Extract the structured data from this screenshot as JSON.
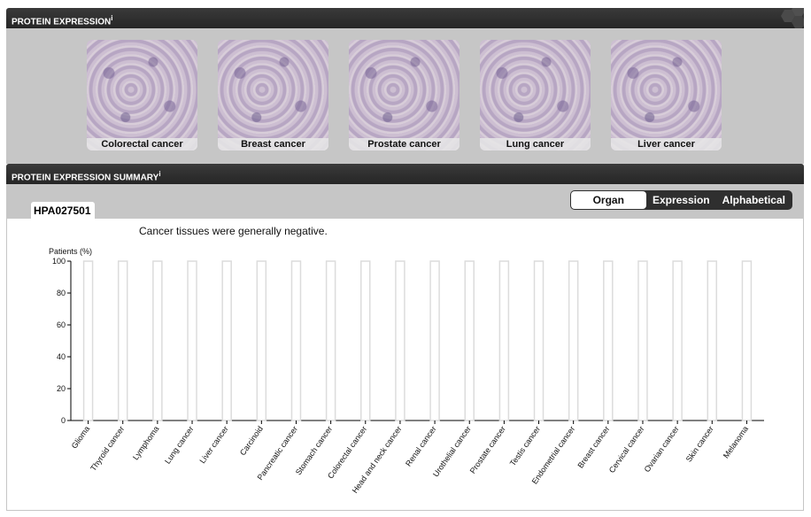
{
  "protein_expression": {
    "title": "PROTEIN EXPRESSION",
    "info_mark": "i",
    "thumbnails": [
      {
        "label": "Colorectal cancer"
      },
      {
        "label": "Breast cancer"
      },
      {
        "label": "Prostate cancer"
      },
      {
        "label": "Lung cancer"
      },
      {
        "label": "Liver cancer"
      }
    ]
  },
  "summary": {
    "title": "PROTEIN EXPRESSION SUMMARY",
    "info_mark": "i",
    "gene_tab": "HPA027501",
    "sort_options": [
      "Organ",
      "Expression",
      "Alphabetical"
    ],
    "selected_sort": "Organ",
    "note": "Cancer tissues were generally negative."
  },
  "chart_data": {
    "type": "bar",
    "ylabel": "Patients (%)",
    "ylim": [
      0,
      100
    ],
    "yticks": [
      0,
      20,
      40,
      60,
      80,
      100
    ],
    "categories": [
      "Glioma",
      "Thyroid cancer",
      "Lymphoma",
      "Lung cancer",
      "Liver cancer",
      "Carcinoid",
      "Pancreatic cancer",
      "Stomach cancer",
      "Colorectal cancer",
      "Head and neck cancer",
      "Renal cancer",
      "Urothelial cancer",
      "Prostate cancer",
      "Testis cancer",
      "Endometrial cancer",
      "Breast cancer",
      "Cervical cancer",
      "Ovarian cancer",
      "Skin cancer",
      "Melanoma"
    ],
    "values": [
      100,
      100,
      100,
      100,
      100,
      100,
      100,
      100,
      100,
      100,
      100,
      100,
      100,
      100,
      100,
      100,
      100,
      100,
      100,
      100
    ],
    "bar_fill": "#ffffff",
    "bar_stroke": "#dcdcdc",
    "grid": false
  }
}
